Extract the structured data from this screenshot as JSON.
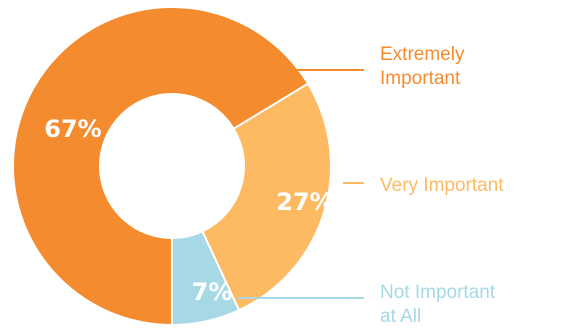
{
  "chart_data": {
    "type": "pie",
    "donut": true,
    "categories": [
      "Extremely Important",
      "Very Important",
      "Not Important at All"
    ],
    "values": [
      67,
      27,
      7
    ],
    "value_labels": [
      "67%",
      "27%",
      "7%"
    ],
    "category_label_lines": [
      [
        "Extremely",
        "Important"
      ],
      [
        "Very Important"
      ],
      [
        "Not Important",
        "at All"
      ]
    ],
    "colors": [
      "#F48C2F",
      "#FDBA63",
      "#A6D8E6"
    ],
    "label_text_colors": [
      "#F48C2F",
      "#FDBA63",
      "#A6D8E6"
    ],
    "leader_line_colors": [
      "#F48C2F",
      "#FDBA63",
      "#A6D8E6"
    ],
    "start_angle_deg": 180,
    "direction": "clockwise",
    "legend": "none",
    "title": ""
  }
}
